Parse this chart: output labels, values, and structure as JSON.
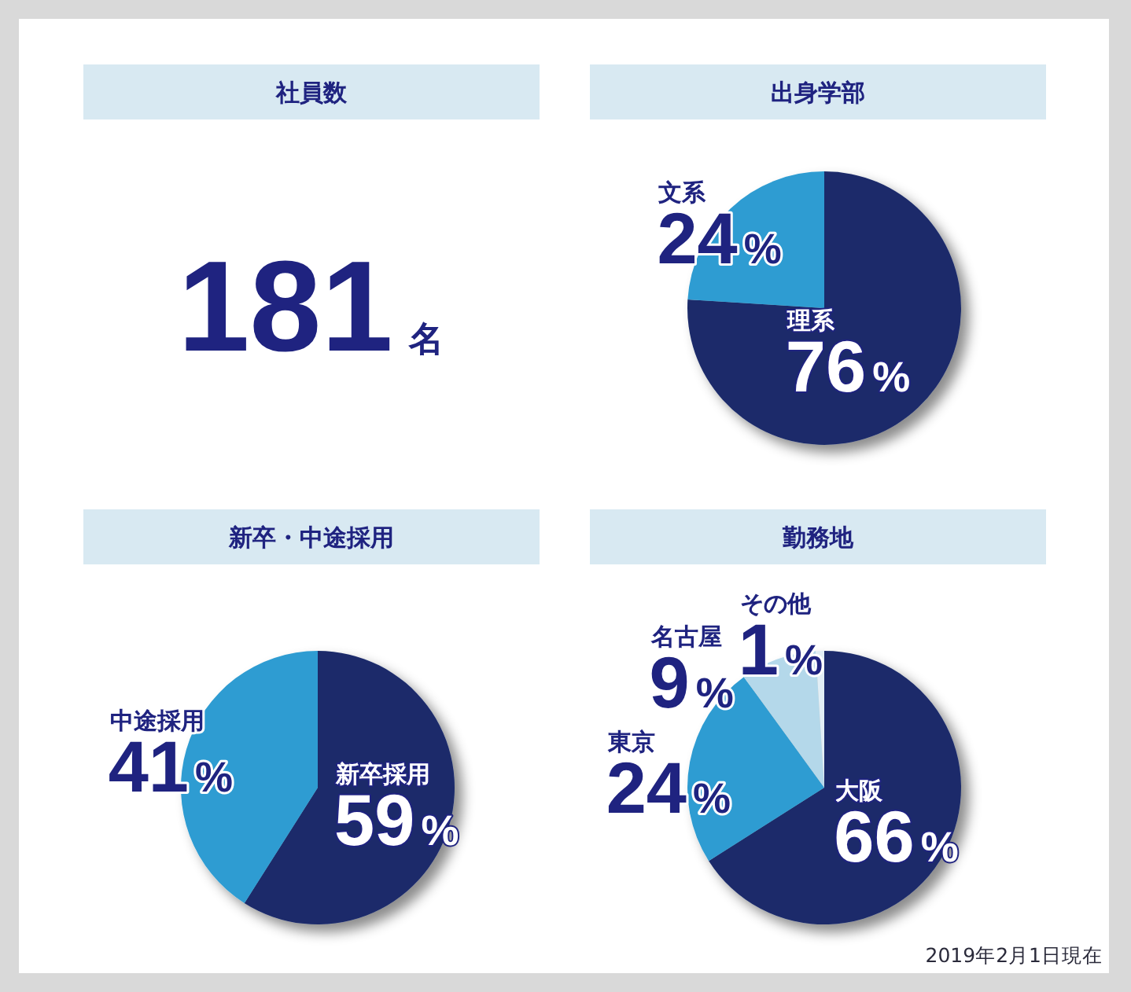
{
  "chart_data": [
    {
      "type": "other",
      "title": "社員数",
      "annotations": [
        "181",
        "名"
      ]
    },
    {
      "type": "pie",
      "title": "出身学部",
      "categories": [
        "理系",
        "文系"
      ],
      "values": [
        76,
        24
      ],
      "colors": [
        "#1b2c6b",
        "#2e9cd2"
      ],
      "value_labels": [
        "76%",
        "24%"
      ]
    },
    {
      "type": "pie",
      "title": "新卒・中途採用",
      "categories": [
        "新卒採用",
        "中途採用"
      ],
      "values": [
        59,
        41
      ],
      "colors": [
        "#1b2c6b",
        "#2e9cd2"
      ],
      "value_labels": [
        "59%",
        "41%"
      ]
    },
    {
      "type": "pie",
      "title": "勤務地",
      "categories": [
        "大阪",
        "東京",
        "名古屋",
        "その他"
      ],
      "values": [
        66,
        24,
        9,
        1
      ],
      "colors": [
        "#1b2c6b",
        "#2e9cd2",
        "#b4d8ea",
        "#e2eef5"
      ],
      "value_labels": [
        "66%",
        "24%",
        "9%",
        "1%"
      ],
      "annotations": [
        "2019年2月1日現在"
      ]
    }
  ]
}
